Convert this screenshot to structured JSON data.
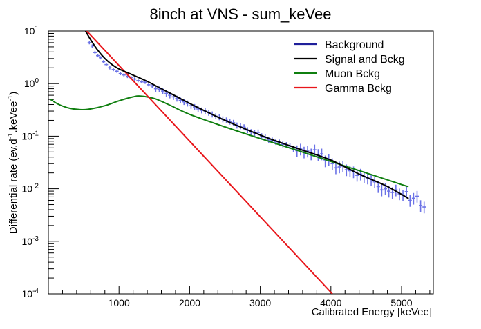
{
  "chart_data": {
    "type": "line",
    "title": "8inch at VNS - sum_keVee",
    "xlabel": "Calibrated Energy [keVee]",
    "ylabel": {
      "pre": "Differential rate (ev.d",
      "sup1": "-1",
      "mid": ".keVee",
      "sup2": "-1",
      "post": ")"
    },
    "xlim": [
      0,
      5450
    ],
    "ylim": [
      0.0001,
      10
    ],
    "yscale": "log",
    "grid": false,
    "legend_position": "top-right",
    "x_ticks": [
      {
        "value": 1000,
        "label": "1000"
      },
      {
        "value": 2000,
        "label": "2000"
      },
      {
        "value": 3000,
        "label": "3000"
      },
      {
        "value": 4000,
        "label": "4000"
      },
      {
        "value": 5000,
        "label": "5000"
      }
    ],
    "y_ticks": [
      {
        "value": 10,
        "base": "10",
        "exp": "1"
      },
      {
        "value": 1,
        "base": "10",
        "exp": "0"
      },
      {
        "value": 0.1,
        "base": "10",
        "exp": "-1"
      },
      {
        "value": 0.01,
        "base": "10",
        "exp": "-2"
      },
      {
        "value": 0.001,
        "base": "10",
        "exp": "-3"
      },
      {
        "value": 0.0001,
        "base": "10",
        "exp": "-4"
      }
    ],
    "series": [
      {
        "name": "Background",
        "color": "#1f1f9a",
        "x": [
          400,
          500,
          600,
          700,
          800,
          900,
          1000,
          1200,
          1400,
          1600,
          1800,
          2000,
          2200,
          2400,
          2600,
          2800,
          3000,
          3200,
          3400,
          3600,
          3800,
          4000,
          4200,
          4400,
          4600,
          4800,
          5000,
          5100
        ],
        "y": [
          20,
          11.5,
          6.8,
          4.3,
          3.0,
          2.3,
          1.9,
          1.45,
          1.1,
          0.8,
          0.58,
          0.42,
          0.31,
          0.23,
          0.175,
          0.135,
          0.105,
          0.083,
          0.067,
          0.054,
          0.044,
          0.035,
          0.026,
          0.019,
          0.0145,
          0.011,
          0.0078,
          0.0065
        ]
      },
      {
        "name": "Signal and Bckg",
        "color": "#000000",
        "x": [
          400,
          500,
          600,
          700,
          800,
          900,
          1000,
          1200,
          1400,
          1600,
          1800,
          2000,
          2200,
          2400,
          2600,
          2800,
          3000,
          3200,
          3400,
          3600,
          3800,
          4000,
          4200,
          4400,
          4600,
          4800,
          5000,
          5100
        ],
        "y": [
          20,
          11.5,
          6.8,
          4.3,
          3.0,
          2.3,
          1.9,
          1.45,
          1.1,
          0.8,
          0.58,
          0.42,
          0.31,
          0.23,
          0.175,
          0.135,
          0.105,
          0.083,
          0.067,
          0.054,
          0.044,
          0.035,
          0.026,
          0.019,
          0.0145,
          0.011,
          0.0078,
          0.0065
        ]
      },
      {
        "name": "Muon Bckg",
        "color": "#0f7f0f",
        "x": [
          30,
          150,
          300,
          450,
          600,
          800,
          1000,
          1200,
          1300,
          1500,
          1700,
          2000,
          2500,
          3000,
          3500,
          4000,
          4500,
          5000,
          5100
        ],
        "y": [
          0.5,
          0.4,
          0.34,
          0.32,
          0.33,
          0.38,
          0.47,
          0.56,
          0.58,
          0.52,
          0.4,
          0.26,
          0.15,
          0.09,
          0.055,
          0.033,
          0.02,
          0.012,
          0.011
        ]
      },
      {
        "name": "Gamma Bckg",
        "color": "#e8161b",
        "x": [
          400,
          4020
        ],
        "y": [
          16.1,
          0.0001
        ]
      }
    ],
    "data_points": {
      "color": "#6b72e6",
      "x": [
        580,
        620,
        660,
        700,
        740,
        780,
        820,
        870,
        920,
        970,
        1020,
        1070,
        1120,
        1170,
        1220,
        1270,
        1320,
        1370,
        1420,
        1470,
        1520,
        1570,
        1620,
        1670,
        1720,
        1770,
        1820,
        1870,
        1920,
        1970,
        2020,
        2070,
        2120,
        2170,
        2220,
        2270,
        2320,
        2370,
        2420,
        2470,
        2520,
        2570,
        2620,
        2670,
        2720,
        2770,
        2820,
        2870,
        2920,
        2970,
        3020,
        3070,
        3120,
        3170,
        3220,
        3270,
        3320,
        3370,
        3420,
        3470,
        3520,
        3570,
        3620,
        3670,
        3720,
        3770,
        3820,
        3870,
        3920,
        3970,
        4020,
        4070,
        4120,
        4170,
        4220,
        4270,
        4320,
        4370,
        4420,
        4470,
        4520,
        4570,
        4620,
        4670,
        4720,
        4770,
        4820,
        4870,
        4920,
        4970,
        5020,
        5070,
        5120,
        5170,
        5220,
        5270,
        5320
      ],
      "y": [
        6.0,
        5.2,
        3.9,
        3.4,
        3.1,
        2.6,
        2.3,
        2.0,
        1.85,
        1.72,
        1.55,
        1.46,
        1.37,
        1.3,
        1.22,
        1.14,
        1.08,
        1.06,
        0.95,
        0.9,
        0.8,
        0.78,
        0.72,
        0.65,
        0.6,
        0.56,
        0.52,
        0.48,
        0.45,
        0.42,
        0.38,
        0.36,
        0.33,
        0.31,
        0.3,
        0.28,
        0.26,
        0.24,
        0.23,
        0.21,
        0.2,
        0.19,
        0.18,
        0.16,
        0.155,
        0.148,
        0.13,
        0.12,
        0.115,
        0.118,
        0.1,
        0.095,
        0.085,
        0.083,
        0.078,
        0.076,
        0.07,
        0.068,
        0.065,
        0.057,
        0.053,
        0.057,
        0.05,
        0.052,
        0.046,
        0.055,
        0.045,
        0.046,
        0.034,
        0.036,
        0.03,
        0.025,
        0.026,
        0.027,
        0.023,
        0.022,
        0.021,
        0.018,
        0.019,
        0.017,
        0.016,
        0.015,
        0.0135,
        0.011,
        0.0095,
        0.01,
        0.009,
        0.0085,
        0.0095,
        0.008,
        0.0076,
        0.0088,
        0.006,
        0.0066,
        0.0072,
        0.0048,
        0.0045
      ]
    }
  }
}
